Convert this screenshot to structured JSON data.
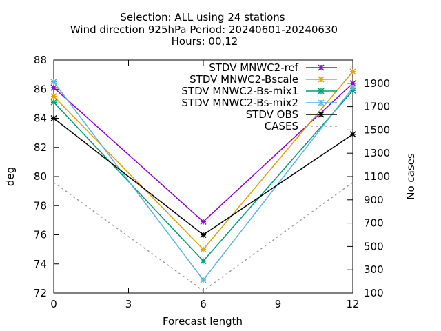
{
  "chart_data": {
    "type": "line",
    "title_lines": [
      "Selection: ALL using    24 stations",
      "Wind direction 925hPa   Period: 20240601-20240630",
      "Hours: 00,12"
    ],
    "xlabel": "Forecast length",
    "ylabel": "deg",
    "y2label": "No cases",
    "x": [
      0,
      6,
      12
    ],
    "xlim": [
      0,
      12
    ],
    "xticks": [
      0,
      3,
      6,
      9,
      12
    ],
    "ylim": [
      72,
      88
    ],
    "yticks": [
      72,
      74,
      76,
      78,
      80,
      82,
      84,
      86,
      88
    ],
    "y2lim": [
      100,
      2100
    ],
    "y2ticks": [
      100,
      300,
      500,
      700,
      900,
      1100,
      1300,
      1500,
      1700,
      1900
    ],
    "grid": false,
    "legend_position": "top-right",
    "series": [
      {
        "name": "STDV MNWC2-ref",
        "color": "#9400d3",
        "axis": "y",
        "dashed": false,
        "values": [
          86.1,
          76.9,
          86.4
        ]
      },
      {
        "name": "STDV MNWC2-Bscale",
        "color": "#e69f00",
        "axis": "y",
        "dashed": false,
        "values": [
          85.5,
          75.0,
          87.2
        ]
      },
      {
        "name": "STDV MNWC2-Bs-mix1",
        "color": "#009e73",
        "axis": "y",
        "dashed": false,
        "values": [
          85.1,
          74.2,
          85.9
        ]
      },
      {
        "name": "STDV MNWC2-Bs-mix2",
        "color": "#56b4e9",
        "axis": "y",
        "dashed": false,
        "values": [
          86.5,
          72.9,
          86.1
        ]
      },
      {
        "name": "STDV OBS",
        "color": "#000000",
        "axis": "y",
        "dashed": false,
        "values": [
          84.0,
          76.0,
          82.9
        ]
      },
      {
        "name": "CASES",
        "color": "#a0a0a0",
        "axis": "y2",
        "dashed": true,
        "values": [
          1050,
          120,
          1050
        ]
      }
    ]
  }
}
